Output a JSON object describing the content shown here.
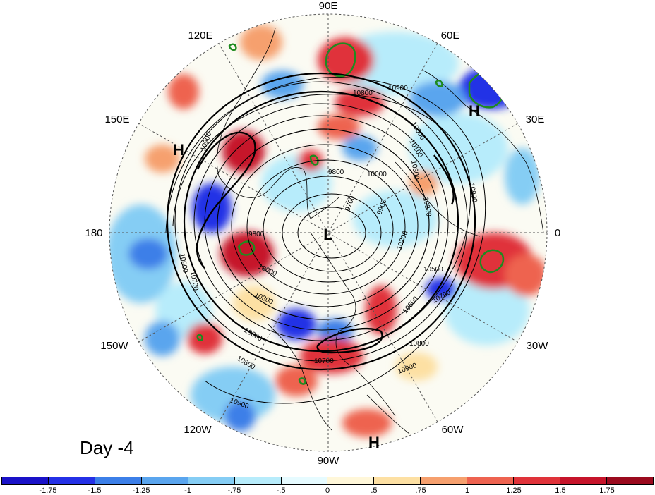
{
  "map": {
    "longitude_labels": [
      "90E",
      "60E",
      "30E",
      "0",
      "30W",
      "60W",
      "90W",
      "120W",
      "150W",
      "180",
      "150E",
      "120E"
    ],
    "centers": [
      {
        "type": "L",
        "label": "L"
      },
      {
        "type": "H",
        "label": "H"
      },
      {
        "type": "H",
        "label": "H"
      },
      {
        "type": "H",
        "label": "H"
      }
    ],
    "contour_levels": [
      "9700",
      "9800",
      "9900",
      "10000",
      "10100",
      "10200",
      "10300",
      "10400",
      "10500",
      "10600",
      "10700",
      "10800",
      "10900"
    ],
    "contour_labels": [
      "9700",
      "9800",
      "9800",
      "9900",
      "10000",
      "10000",
      "10100",
      "10200",
      "10300",
      "10300",
      "10300",
      "10500",
      "10600",
      "10600",
      "10600",
      "10700",
      "10700",
      "10700",
      "10800",
      "10800",
      "10800",
      "10900",
      "10900",
      "10900",
      "10900",
      "10900",
      "10900"
    ],
    "day_label": "Day -4"
  },
  "colorbar": {
    "tick_labels": [
      "-1.75",
      "-1.5",
      "-1.25",
      "-1",
      "-.75",
      "-.5",
      "0",
      ".5",
      ".75",
      "1",
      "1.25",
      "1.5",
      "1.75"
    ],
    "colors": [
      "#1a12c8",
      "#2430e6",
      "#3c7fe8",
      "#5aa5ee",
      "#85cdf4",
      "#b7ecfb",
      "#e6fbff",
      "#fff7d9",
      "#fde0a3",
      "#f6a06e",
      "#ee6350",
      "#e0333a",
      "#c6142a",
      "#9b0a1e"
    ]
  }
}
